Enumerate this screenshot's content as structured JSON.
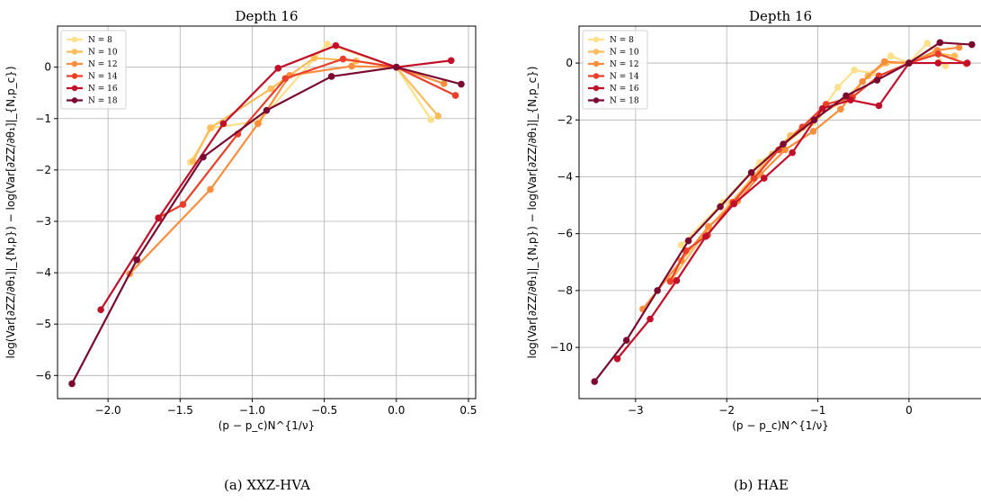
{
  "chart_data": [
    {
      "type": "line",
      "title": "Depth 16",
      "caption": "(a)  XXZ-HVA",
      "xlabel": "(p − p_c)N^{1/ν}",
      "ylabel": "log(Var[∂ZZ/∂θ₁]|_{N,p}) − log(Var[∂ZZ/∂θ₁]|_{N,p_c})",
      "xlim": [
        -2.35,
        0.55
      ],
      "ylim": [
        -6.45,
        0.8
      ],
      "xticks": [
        -2.0,
        -1.5,
        -1.0,
        -0.5,
        0.0,
        0.5
      ],
      "xtick_labels": [
        "−2.0",
        "−1.5",
        "−1.0",
        "−0.5",
        "0.0",
        "0.5"
      ],
      "yticks": [
        -6,
        -5,
        -4,
        -3,
        -2,
        -1,
        0
      ],
      "ytick_labels": [
        "−6",
        "−5",
        "−4",
        "−3",
        "−2",
        "−1",
        "0"
      ],
      "grid": true,
      "legend": "top-left",
      "series": [
        {
          "name": "N = 8",
          "color": "#fedf8a",
          "x": [
            -1.43,
            -1.28,
            -0.95,
            -0.48,
            0.0,
            0.24
          ],
          "y": [
            -1.85,
            -1.18,
            -1.05,
            0.45,
            0.0,
            -1.02
          ]
        },
        {
          "name": "N = 10",
          "color": "#fdbb5a",
          "x": [
            -1.41,
            -1.29,
            -0.87,
            -0.57,
            -0.28,
            0.0,
            0.29
          ],
          "y": [
            -1.83,
            -1.18,
            -0.42,
            0.18,
            0.12,
            0.0,
            -0.95
          ]
        },
        {
          "name": "N = 12",
          "color": "#fc8d3c",
          "x": [
            -1.85,
            -1.29,
            -0.96,
            -0.74,
            -0.31,
            0.0,
            0.33
          ],
          "y": [
            -4.02,
            -2.38,
            -1.1,
            -0.16,
            0.02,
            0.0,
            -0.32
          ]
        },
        {
          "name": "N = 14",
          "color": "#e9402a",
          "x": [
            -1.65,
            -1.48,
            -1.1,
            -0.77,
            -0.37,
            0.0,
            0.41
          ],
          "y": [
            -2.93,
            -2.67,
            -1.3,
            -0.22,
            0.16,
            0.0,
            -0.55
          ]
        },
        {
          "name": "N = 16",
          "color": "#c2102a",
          "x": [
            -2.05,
            -1.65,
            -1.2,
            -0.82,
            -0.42,
            0.0,
            0.38
          ],
          "y": [
            -4.72,
            -2.94,
            -1.1,
            -0.02,
            0.42,
            0.0,
            0.13
          ]
        },
        {
          "name": "N = 18",
          "color": "#7a0a30",
          "x": [
            -2.25,
            -1.8,
            -1.34,
            -0.9,
            -0.45,
            0.0,
            0.45
          ],
          "y": [
            -6.16,
            -3.75,
            -1.75,
            -0.84,
            -0.18,
            0.0,
            -0.33
          ]
        }
      ]
    },
    {
      "type": "line",
      "title": "Depth 16",
      "caption": "(b) HAE",
      "xlabel": "(p − p_c)N^{1/ν}",
      "ylabel": "log(Var[∂ZZ/∂θ₁]|_{N,p}) − log(Var[∂ZZ/∂θ₁]|_{N,p_c})",
      "xlim": [
        -3.62,
        0.8
      ],
      "ylim": [
        -11.8,
        1.3
      ],
      "xticks": [
        -3,
        -2,
        -1,
        0
      ],
      "xtick_labels": [
        "−3",
        "−2",
        "−1",
        "0"
      ],
      "yticks": [
        -10,
        -8,
        -6,
        -4,
        -2,
        0
      ],
      "ytick_labels": [
        "−10",
        "−8",
        "−6",
        "−4",
        "−2",
        "0"
      ],
      "grid": true,
      "legend": "top-left",
      "series": [
        {
          "name": "N = 8",
          "color": "#fedf8a",
          "x": [
            -2.5,
            -2.04,
            -1.64,
            -1.05,
            -0.78,
            -0.6,
            -0.4,
            -0.2,
            0.0,
            0.2,
            0.4
          ],
          "y": [
            -6.4,
            -4.9,
            -3.5,
            -2.1,
            -0.85,
            -0.25,
            -0.35,
            0.25,
            0.0,
            0.7,
            -0.1
          ]
        },
        {
          "name": "N = 10",
          "color": "#fdbb5a",
          "x": [
            -2.6,
            -2.2,
            -1.95,
            -1.5,
            -1.3,
            -1.0,
            -0.7,
            -0.45,
            -0.25,
            0.0,
            0.3,
            0.5
          ],
          "y": [
            -7.6,
            -5.8,
            -4.9,
            -3.2,
            -2.55,
            -1.85,
            -1.3,
            -0.45,
            0.0,
            0.0,
            0.35,
            0.25
          ]
        },
        {
          "name": "N = 12",
          "color": "#fc8d3c",
          "x": [
            -2.92,
            -2.5,
            -2.2,
            -1.88,
            -1.63,
            -1.36,
            -1.05,
            -0.75,
            -0.51,
            -0.27,
            0.0,
            0.31,
            0.55
          ],
          "y": [
            -8.65,
            -6.95,
            -5.75,
            -4.85,
            -3.92,
            -3.05,
            -2.4,
            -1.62,
            -0.65,
            0.05,
            0.0,
            0.45,
            0.55
          ]
        },
        {
          "name": "N = 14",
          "color": "#e9402a",
          "x": [
            -2.62,
            -2.45,
            -2.21,
            -1.93,
            -1.7,
            -1.43,
            -1.17,
            -0.91,
            -0.62,
            -0.33,
            0.0,
            0.32,
            0.63
          ],
          "y": [
            -7.68,
            -6.6,
            -6.05,
            -4.9,
            -4.05,
            -3.05,
            -2.25,
            -1.45,
            -1.2,
            -0.45,
            0.0,
            0.32,
            -0.02
          ]
        },
        {
          "name": "N = 16",
          "color": "#c2102a",
          "x": [
            -3.2,
            -2.84,
            -2.55,
            -2.23,
            -1.92,
            -1.59,
            -1.28,
            -0.95,
            -0.64,
            -0.33,
            0.0,
            0.32,
            0.64
          ],
          "y": [
            -10.4,
            -9.0,
            -7.65,
            -6.1,
            -4.95,
            -4.05,
            -3.15,
            -1.6,
            -1.3,
            -1.5,
            0.0,
            0.0,
            0.0
          ]
        },
        {
          "name": "N = 18",
          "color": "#7a0a30",
          "x": [
            -3.45,
            -3.1,
            -2.76,
            -2.42,
            -2.07,
            -1.73,
            -1.38,
            -1.04,
            -0.69,
            -0.35,
            0.0,
            0.34,
            0.69
          ],
          "y": [
            -11.2,
            -9.75,
            -8.0,
            -6.25,
            -5.05,
            -3.85,
            -2.85,
            -2.0,
            -1.15,
            -0.6,
            0.0,
            0.72,
            0.65
          ]
        }
      ]
    }
  ]
}
